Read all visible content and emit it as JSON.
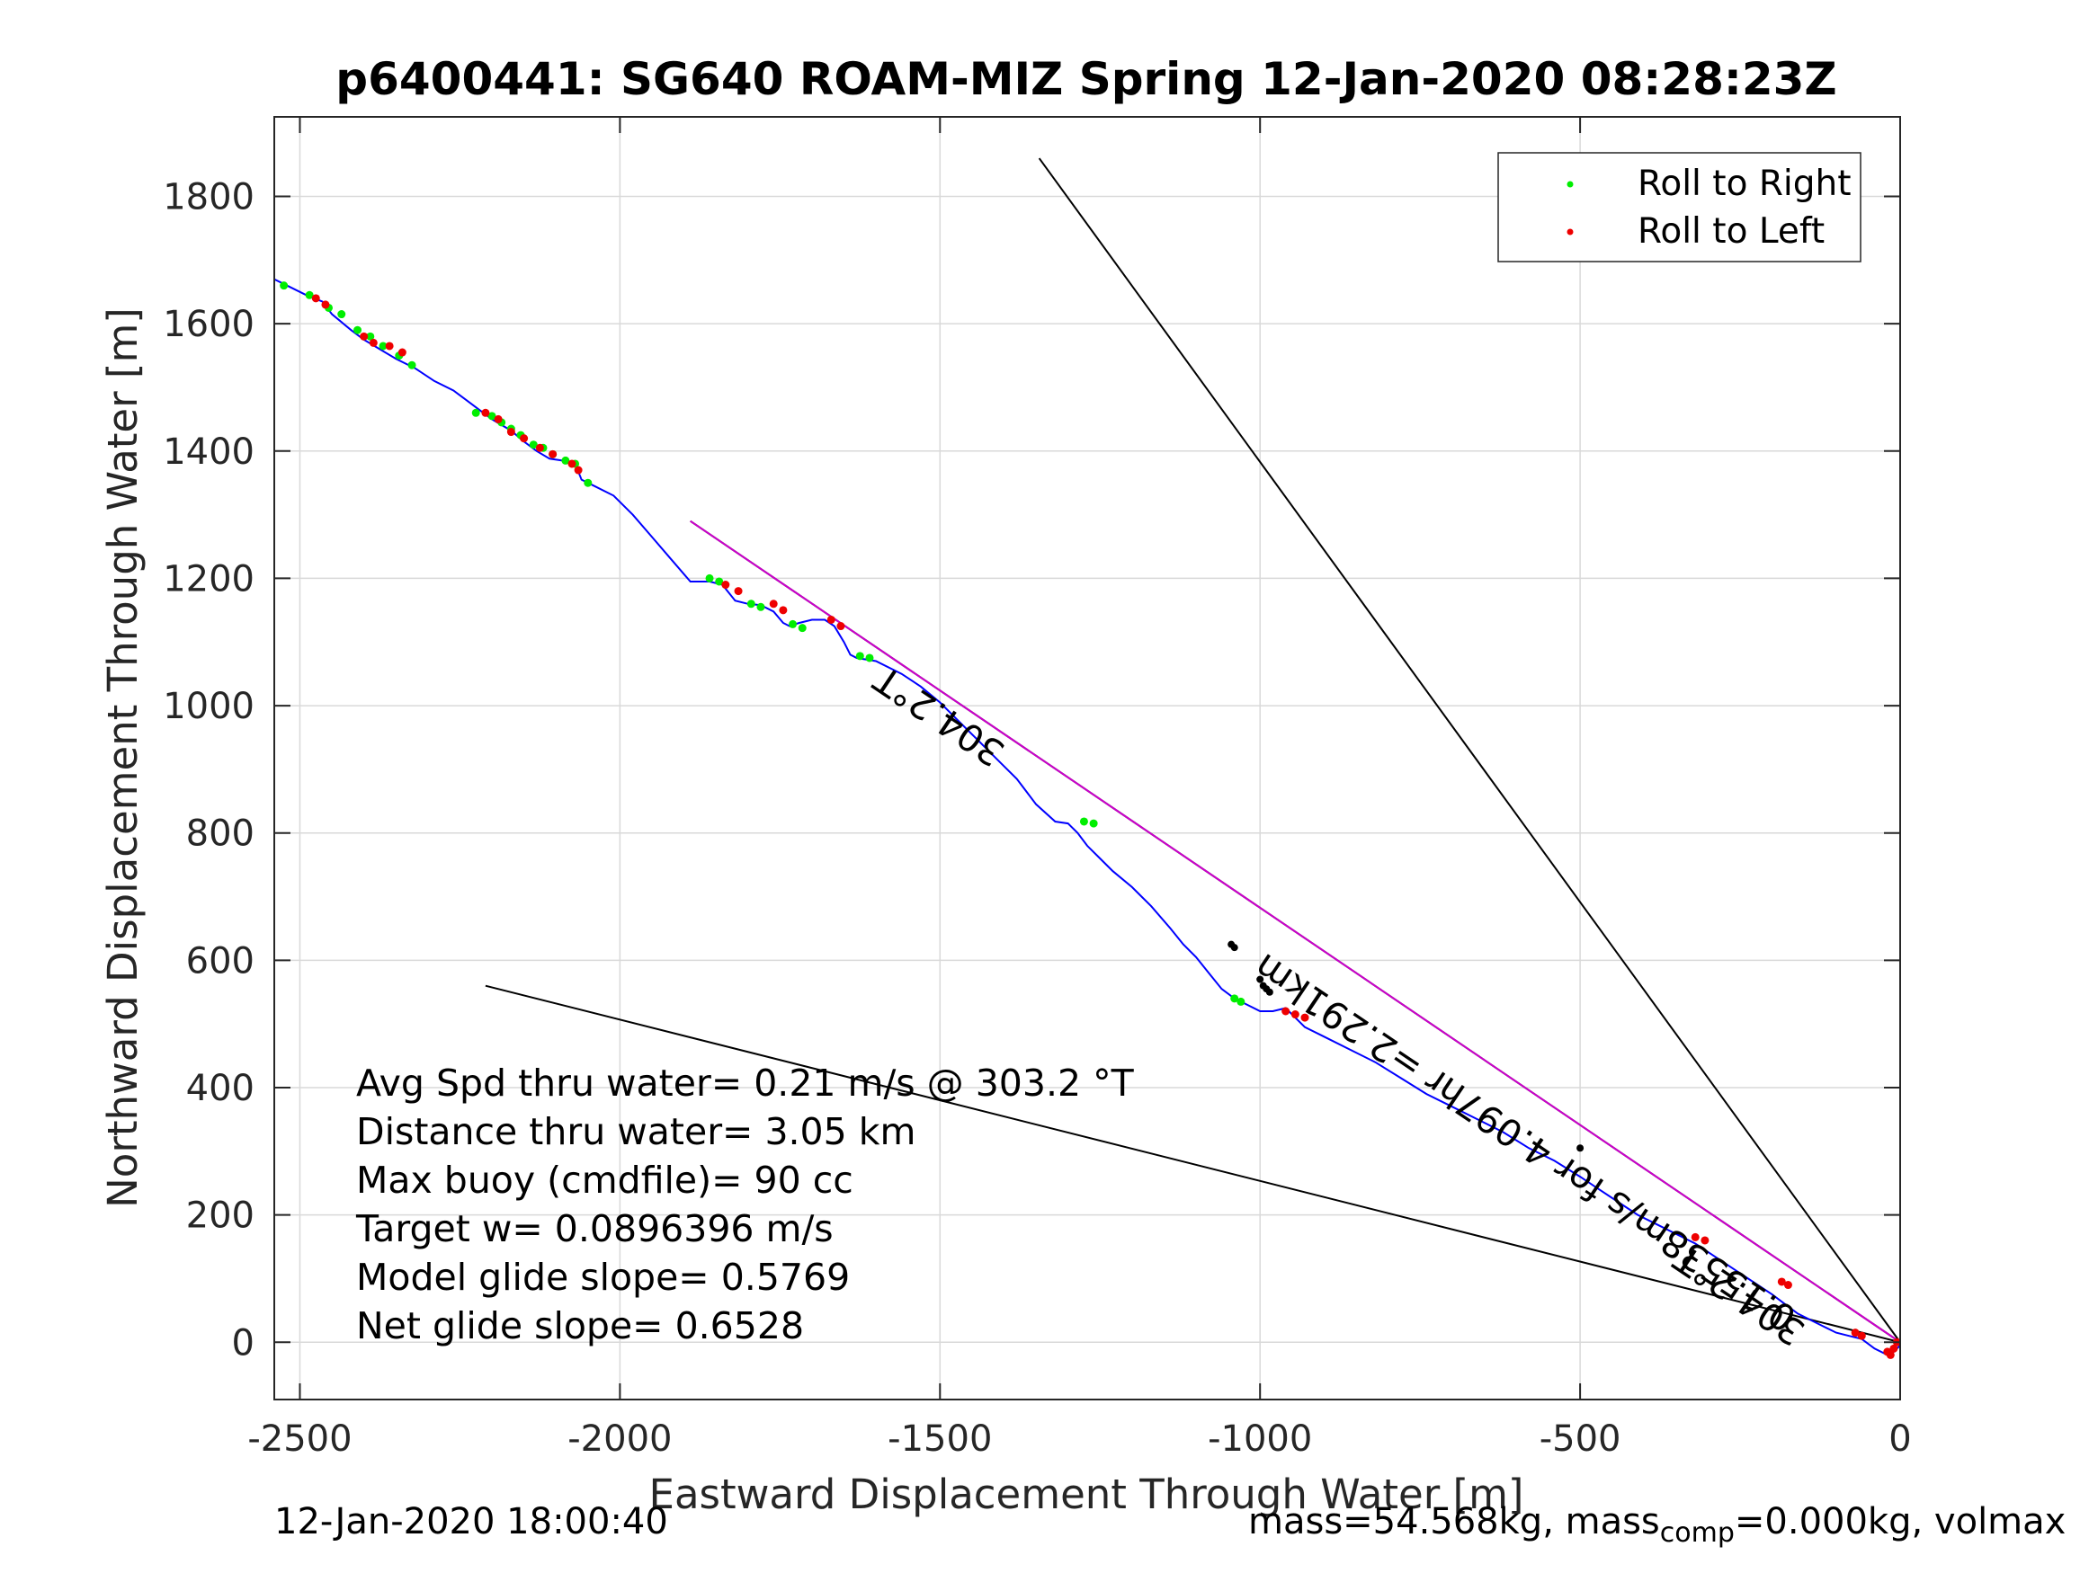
{
  "chart_data": {
    "type": "line",
    "title": "p6400441: SG640 ROAM-MIZ Spring 12-Jan-2020 08:28:23Z",
    "xlabel": "Eastward Displacement Through Water [m]",
    "ylabel": "Northward Displacement Through Water [m]",
    "xlim": [
      -2540,
      0
    ],
    "ylim": [
      -90,
      1925
    ],
    "xticks": [
      -2500,
      -2000,
      -1500,
      -1000,
      -500,
      0
    ],
    "yticks": [
      0,
      200,
      400,
      600,
      800,
      1000,
      1200,
      1400,
      1600,
      1800
    ],
    "grid": true,
    "legend": {
      "placement": "top-right",
      "entries": [
        {
          "label": "Roll to Right",
          "color": "#00ee00"
        },
        {
          "label": "Roll to Left",
          "color": "#ee0000"
        }
      ]
    },
    "track": {
      "color": "#0000ff",
      "x": [
        -2540,
        -2520,
        -2490,
        -2465,
        -2450,
        -2420,
        -2400,
        -2375,
        -2350,
        -2320,
        -2290,
        -2260,
        -2240,
        -2220,
        -2200,
        -2170,
        -2150,
        -2130,
        -2110,
        -2090,
        -2070,
        -2060,
        -2040,
        -2010,
        -1980,
        -1950,
        -1920,
        -1890,
        -1860,
        -1840,
        -1820,
        -1800,
        -1780,
        -1760,
        -1745,
        -1735,
        -1720,
        -1700,
        -1680,
        -1665,
        -1650,
        -1640,
        -1630,
        -1600,
        -1560,
        -1530,
        -1500,
        -1470,
        -1440,
        -1410,
        -1380,
        -1350,
        -1320,
        -1300,
        -1285,
        -1270,
        -1250,
        -1230,
        -1200,
        -1170,
        -1140,
        -1120,
        -1100,
        -1080,
        -1060,
        -1040,
        -1020,
        -1000,
        -980,
        -960,
        -945,
        -930,
        -900,
        -860,
        -820,
        -780,
        -740,
        -700,
        -660,
        -620,
        -580,
        -540,
        -500,
        -470,
        -440,
        -410,
        -380,
        -350,
        -320,
        -290,
        -260,
        -230,
        -200,
        -180,
        -160,
        -140,
        -120,
        -100,
        -80,
        -60,
        -40,
        -20,
        -10,
        0
      ],
      "y": [
        1670,
        1660,
        1645,
        1635,
        1615,
        1590,
        1575,
        1560,
        1545,
        1530,
        1510,
        1495,
        1480,
        1465,
        1450,
        1432,
        1415,
        1400,
        1388,
        1385,
        1380,
        1355,
        1345,
        1330,
        1300,
        1265,
        1230,
        1195,
        1195,
        1190,
        1165,
        1160,
        1158,
        1148,
        1130,
        1125,
        1130,
        1135,
        1135,
        1125,
        1100,
        1080,
        1075,
        1070,
        1050,
        1030,
        1005,
        975,
        945,
        915,
        885,
        845,
        818,
        815,
        800,
        780,
        760,
        740,
        715,
        685,
        650,
        625,
        605,
        580,
        555,
        540,
        530,
        520,
        520,
        525,
        510,
        495,
        480,
        460,
        440,
        415,
        390,
        370,
        350,
        330,
        305,
        285,
        260,
        240,
        220,
        200,
        185,
        170,
        155,
        135,
        115,
        95,
        75,
        60,
        45,
        35,
        25,
        15,
        10,
        5,
        -10,
        -20,
        -15,
        -5
      ]
    },
    "roll_right": {
      "color": "#00ee00",
      "x": [
        -2525,
        -2485,
        -2455,
        -2435,
        -2410,
        -2390,
        -2370,
        -2345,
        -2325,
        -2225,
        -2200,
        -2185,
        -2170,
        -2155,
        -2135,
        -2120,
        -2105,
        -2085,
        -2070,
        -2050,
        -1860,
        -1845,
        -1795,
        -1780,
        -1730,
        -1715,
        -1625,
        -1610,
        -1275,
        -1260,
        -1040,
        -1030
      ],
      "y": [
        1660,
        1645,
        1625,
        1615,
        1590,
        1580,
        1565,
        1550,
        1535,
        1460,
        1455,
        1445,
        1435,
        1425,
        1410,
        1405,
        1395,
        1385,
        1380,
        1350,
        1200,
        1195,
        1160,
        1155,
        1128,
        1122,
        1078,
        1075,
        818,
        815,
        540,
        535
      ]
    },
    "roll_left": {
      "color": "#ee0000",
      "x": [
        -2475,
        -2460,
        -2400,
        -2385,
        -2360,
        -2340,
        -2210,
        -2190,
        -2170,
        -2150,
        -2125,
        -2105,
        -2075,
        -2065,
        -1835,
        -1815,
        -1760,
        -1745,
        -1670,
        -1655,
        -960,
        -945,
        -930,
        -320,
        -305,
        -185,
        -175,
        -70,
        -60,
        -20,
        -15,
        -10,
        -5
      ],
      "y": [
        1640,
        1630,
        1580,
        1570,
        1565,
        1555,
        1460,
        1450,
        1430,
        1420,
        1405,
        1395,
        1380,
        1370,
        1190,
        1180,
        1160,
        1150,
        1135,
        1125,
        520,
        515,
        510,
        165,
        160,
        95,
        90,
        15,
        10,
        -15,
        -20,
        -10,
        0
      ]
    },
    "black_points": {
      "color": "#000000",
      "x": [
        -1045,
        -1040,
        -1000,
        -995,
        -990,
        -985,
        -500
      ],
      "y": [
        625,
        620,
        570,
        560,
        555,
        550,
        305
      ]
    },
    "lines": [
      {
        "color": "#000000",
        "x": [
          0,
          -1345
        ],
        "y": [
          0,
          1860
        ]
      },
      {
        "color": "#000000",
        "x": [
          0,
          -2210
        ],
        "y": [
          0,
          560
        ]
      },
      {
        "color": "#000000",
        "x": [
          0,
          -1890
        ],
        "y": [
          0,
          1290
        ]
      },
      {
        "color": "#cc00cc",
        "x": [
          0,
          -1890
        ],
        "y": [
          0,
          1290
        ]
      }
    ],
    "annotations": [
      {
        "text": "304.2°T",
        "x": -1490,
        "y": 1000,
        "rotation": 34
      },
      {
        "text": "304.2°T",
        "x": -240,
        "y": 90,
        "rotation": 34
      },
      {
        "text": "0.15538m/s for 4.097hr =2.291km",
        "x": -575,
        "y": 330,
        "rotation": 34
      }
    ],
    "stats": [
      "Avg Spd thru water=  0.21 m/s @ 303.2 °T",
      "Distance thru water=  3.05 km",
      "Max buoy (cmdfile)= 90 cc",
      "Target w= 0.0896396 m/s",
      "Model glide slope= 0.5769",
      "Net glide slope= 0.6528"
    ]
  },
  "footer": {
    "left": "12-Jan-2020 18:00:40",
    "right_main": "mass=54.568kg, mass",
    "right_sub": "comp",
    "right_tail": "=0.000kg, volmax"
  }
}
